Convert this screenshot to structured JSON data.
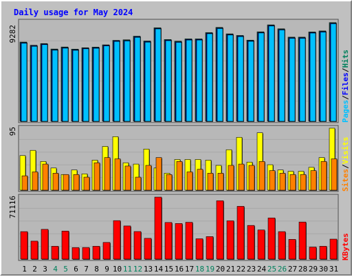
{
  "title": "Daily usage for May 2024",
  "colors": {
    "background": "#c0c0c0",
    "plot_background": "#b8b8b8",
    "title": "#0000ff",
    "hits": "#00805c",
    "files": "#0000ff",
    "pages": "#00c0ff",
    "visits": "#ffff00",
    "sites": "#ff8000",
    "kbytes": "#ff0000",
    "weekend_day": "#00805c",
    "weekday": "#000000"
  },
  "days": [
    "1",
    "2",
    "3",
    "4",
    "5",
    "6",
    "7",
    "8",
    "9",
    "10",
    "11",
    "12",
    "13",
    "14",
    "15",
    "16",
    "17",
    "18",
    "19",
    "20",
    "21",
    "22",
    "23",
    "24",
    "25",
    "26",
    "27",
    "28",
    "29",
    "30",
    "31"
  ],
  "weekend_days": [
    "4",
    "5",
    "11",
    "12",
    "18",
    "19",
    "25",
    "26"
  ],
  "panels": {
    "top": {
      "max_label": "9282",
      "legend": [
        "Pages",
        "/",
        "Files",
        "/",
        "Hits"
      ]
    },
    "middle": {
      "max_label": "95",
      "legend": [
        "Sites",
        "/",
        "Visits"
      ]
    },
    "bottom": {
      "max_label": "71116",
      "legend": [
        "KBytes"
      ]
    }
  },
  "chart_data": [
    {
      "type": "bar",
      "categories": [
        "1",
        "2",
        "3",
        "4",
        "5",
        "6",
        "7",
        "8",
        "9",
        "10",
        "11",
        "12",
        "13",
        "14",
        "15",
        "16",
        "17",
        "18",
        "19",
        "20",
        "21",
        "22",
        "23",
        "24",
        "25",
        "26",
        "27",
        "28",
        "29",
        "30",
        "31"
      ],
      "ylim": [
        0,
        9282
      ],
      "series": [
        {
          "name": "Hits",
          "values": [
            7410,
            7110,
            7270,
            6760,
            6950,
            6750,
            6880,
            6940,
            7150,
            7570,
            7620,
            7960,
            7510,
            8750,
            7650,
            7490,
            7710,
            7710,
            8300,
            8780,
            8180,
            8030,
            7590,
            8370,
            9020,
            8650,
            7870,
            7870,
            8360,
            8450,
            9230
          ]
        },
        {
          "name": "Files",
          "values": [
            7350,
            7060,
            7220,
            6700,
            6890,
            6690,
            6830,
            6880,
            7100,
            7520,
            7560,
            7900,
            7450,
            8690,
            7590,
            7430,
            7650,
            7650,
            8240,
            8720,
            8120,
            7970,
            7530,
            8310,
            8960,
            8590,
            7810,
            7810,
            8300,
            8390,
            9170
          ]
        },
        {
          "name": "Pages",
          "values": [
            7300,
            7010,
            7170,
            6650,
            6840,
            6640,
            6780,
            6830,
            7050,
            7470,
            7510,
            7850,
            7400,
            8640,
            7540,
            7380,
            7600,
            7600,
            8190,
            8670,
            8070,
            7920,
            7480,
            8260,
            8910,
            8540,
            7760,
            7760,
            8250,
            8340,
            9120
          ]
        }
      ]
    },
    {
      "type": "bar",
      "categories": [
        "1",
        "2",
        "3",
        "4",
        "5",
        "6",
        "7",
        "8",
        "9",
        "10",
        "11",
        "12",
        "13",
        "14",
        "15",
        "16",
        "17",
        "18",
        "19",
        "20",
        "21",
        "22",
        "23",
        "24",
        "25",
        "26",
        "27",
        "28",
        "29",
        "30",
        "31"
      ],
      "ylim": [
        0,
        95
      ],
      "series": [
        {
          "name": "Visits",
          "values": [
            53,
            61,
            44,
            34,
            24,
            31,
            25,
            46,
            67,
            82,
            42,
            40,
            63,
            34,
            26,
            47,
            47,
            47,
            46,
            38,
            62,
            81,
            43,
            88,
            39,
            31,
            29,
            29,
            35,
            50,
            95
          ]
        },
        {
          "name": "Sites",
          "values": [
            22,
            28,
            40,
            26,
            24,
            24,
            20,
            42,
            50,
            48,
            37,
            20,
            38,
            50,
            24,
            44,
            28,
            32,
            26,
            26,
            38,
            40,
            38,
            44,
            30,
            26,
            24,
            24,
            30,
            44,
            48
          ]
        }
      ]
    },
    {
      "type": "bar",
      "categories": [
        "1",
        "2",
        "3",
        "4",
        "5",
        "6",
        "7",
        "8",
        "9",
        "10",
        "11",
        "12",
        "13",
        "14",
        "15",
        "16",
        "17",
        "18",
        "19",
        "20",
        "21",
        "22",
        "23",
        "24",
        "25",
        "26",
        "27",
        "28",
        "29",
        "30",
        "31"
      ],
      "ylim": [
        0,
        71116
      ],
      "series": [
        {
          "name": "KBytes",
          "values": [
            31500,
            20600,
            34100,
            14700,
            32100,
            13200,
            13300,
            14700,
            19100,
            44100,
            38000,
            31600,
            23800,
            71100,
            42000,
            40800,
            42200,
            23300,
            25800,
            66900,
            43900,
            60500,
            38600,
            33400,
            47200,
            31500,
            22600,
            42500,
            13800,
            14700,
            22900
          ]
        }
      ]
    }
  ]
}
